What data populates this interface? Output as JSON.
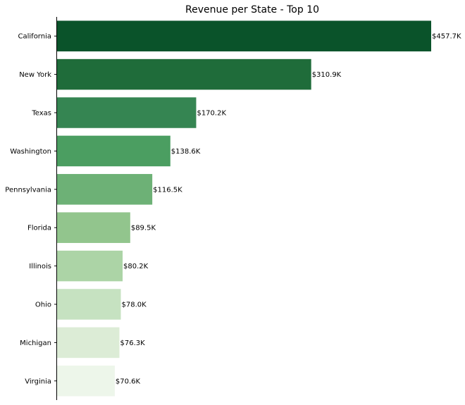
{
  "chart_data": {
    "type": "bar",
    "orientation": "horizontal",
    "title": "Revenue per State - Top 10",
    "xlabel": "",
    "ylabel": "",
    "categories": [
      "California",
      "New York",
      "Texas",
      "Washington",
      "Pennsylvania",
      "Florida",
      "Illinois",
      "Ohio",
      "Michigan",
      "Virginia"
    ],
    "values": [
      457.7,
      310.9,
      170.2,
      138.6,
      116.5,
      89.5,
      80.2,
      78.0,
      76.3,
      70.6
    ],
    "value_labels": [
      "$457.7K",
      "$310.9K",
      "$170.2K",
      "$138.6K",
      "$116.5K",
      "$89.5K",
      "$80.2K",
      "$78.0K",
      "$76.3K",
      "$70.6K"
    ],
    "xlim": [
      0,
      457.7
    ],
    "grid": false,
    "x_axis_visible": false,
    "legend": "none",
    "colors": [
      "#0a532a",
      "#1f6c3a",
      "#358552",
      "#4b9e61",
      "#6db176",
      "#92c58d",
      "#acd4a6",
      "#c6e2c1",
      "#dcecd6",
      "#edf6ea"
    ]
  }
}
